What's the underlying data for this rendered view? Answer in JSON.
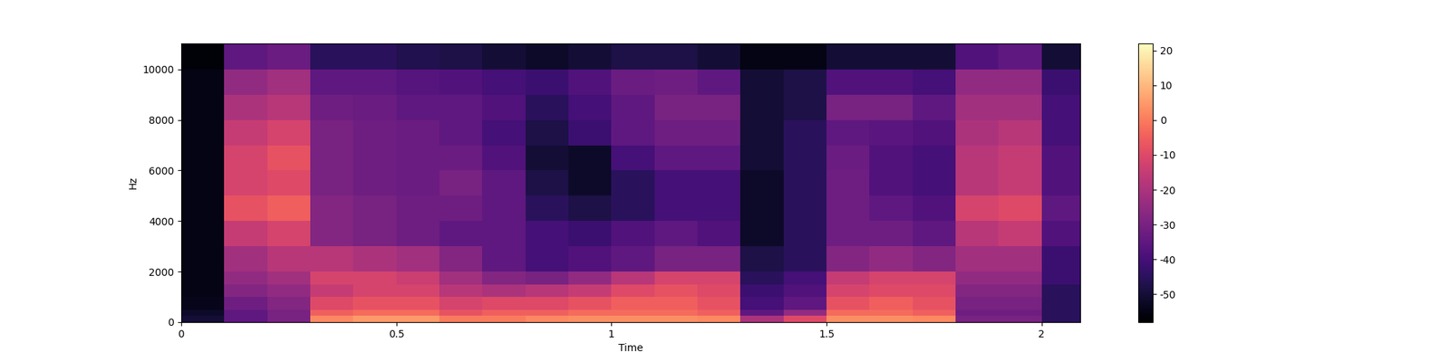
{
  "chart_data": {
    "type": "heatmap",
    "x_label": "Time",
    "y_label": "Hz",
    "xlim": [
      0,
      2.09
    ],
    "xticks": [
      0,
      0.5,
      1,
      1.5,
      2
    ],
    "ylim": [
      0,
      11025
    ],
    "yticks": [
      0,
      2000,
      4000,
      6000,
      8000,
      10000
    ],
    "color": "magma",
    "x_edges": [
      0,
      0.1,
      0.2,
      0.3,
      0.4,
      0.5,
      0.6,
      0.7,
      0.8,
      0.9,
      1.0,
      1.1,
      1.2,
      1.3,
      1.4,
      1.5,
      1.6,
      1.7,
      1.8,
      1.9,
      2.0,
      2.1
    ],
    "y_edges": [
      0,
      250,
      500,
      1000,
      1500,
      2000,
      3000,
      4000,
      5000,
      6000,
      7000,
      8000,
      9000,
      10000,
      11025
    ],
    "cells_by_time": [
      [
        -50,
        -52,
        -54,
        -55,
        -55,
        -55,
        -55,
        -55,
        -55,
        -55,
        -55,
        -55,
        -55,
        -57
      ],
      [
        -35,
        -35,
        -32,
        -28,
        -25,
        -22,
        -15,
        -8,
        -12,
        -12,
        -15,
        -20,
        -25,
        -35
      ],
      [
        -30,
        -30,
        -28,
        -25,
        -22,
        -18,
        -12,
        -5,
        -10,
        -8,
        -12,
        -18,
        -22,
        -33
      ],
      [
        2,
        -5,
        -10,
        -15,
        -12,
        -18,
        -28,
        -28,
        -30,
        -30,
        -30,
        -32,
        -35,
        -45
      ],
      [
        5,
        -3,
        -8,
        -12,
        -12,
        -20,
        -30,
        -30,
        -32,
        -32,
        -32,
        -33,
        -35,
        -45
      ],
      [
        5,
        -3,
        -8,
        -12,
        -14,
        -22,
        -32,
        -32,
        -33,
        -33,
        -33,
        -35,
        -37,
        -47
      ],
      [
        0,
        -8,
        -12,
        -18,
        -22,
        -28,
        -35,
        -32,
        -30,
        -33,
        -35,
        -35,
        -38,
        -48
      ],
      [
        0,
        -5,
        -10,
        -20,
        -28,
        -35,
        -35,
        -35,
        -35,
        -38,
        -40,
        -38,
        -40,
        -50
      ],
      [
        2,
        -5,
        -10,
        -18,
        -30,
        -40,
        -40,
        -45,
        -48,
        -50,
        -48,
        -45,
        -42,
        -52
      ],
      [
        3,
        -3,
        -8,
        -15,
        -25,
        -38,
        -42,
        -48,
        -52,
        -52,
        -42,
        -40,
        -38,
        -50
      ],
      [
        3,
        -3,
        -5,
        -10,
        -18,
        -35,
        -38,
        -45,
        -45,
        -40,
        -35,
        -35,
        -33,
        -48
      ],
      [
        3,
        -3,
        -5,
        -8,
        -12,
        -30,
        -35,
        -40,
        -40,
        -35,
        -32,
        -30,
        -32,
        -48
      ],
      [
        2,
        -5,
        -8,
        -10,
        -12,
        -30,
        -38,
        -40,
        -40,
        -35,
        -32,
        -30,
        -35,
        -50
      ],
      [
        -20,
        -35,
        -40,
        -42,
        -45,
        -48,
        -52,
        -52,
        -52,
        -50,
        -50,
        -50,
        -50,
        -55
      ],
      [
        -10,
        -25,
        -35,
        -38,
        -40,
        -45,
        -45,
        -45,
        -45,
        -45,
        -45,
        -48,
        -48,
        -55
      ],
      [
        3,
        -3,
        -8,
        -12,
        -15,
        -28,
        -32,
        -32,
        -32,
        -33,
        -35,
        -30,
        -38,
        -50
      ],
      [
        3,
        -3,
        -5,
        -10,
        -12,
        -25,
        -32,
        -35,
        -38,
        -38,
        -36,
        -30,
        -38,
        -50
      ],
      [
        2,
        -5,
        -8,
        -10,
        -12,
        -28,
        -35,
        -38,
        -40,
        -40,
        -38,
        -35,
        -40,
        -50
      ],
      [
        -30,
        -32,
        -30,
        -28,
        -25,
        -22,
        -18,
        -12,
        -18,
        -18,
        -20,
        -22,
        -25,
        -38
      ],
      [
        -30,
        -32,
        -30,
        -28,
        -25,
        -22,
        -15,
        -10,
        -15,
        -15,
        -18,
        -22,
        -25,
        -35
      ],
      [
        -45,
        -45,
        -45,
        -45,
        -42,
        -42,
        -38,
        -35,
        -38,
        -38,
        -40,
        -40,
        -42,
        -50
      ]
    ],
    "colorbar_range": [
      -58,
      22
    ],
    "colorbar_ticks": [
      -50,
      -40,
      -30,
      -20,
      -10,
      0,
      10,
      20
    ]
  }
}
